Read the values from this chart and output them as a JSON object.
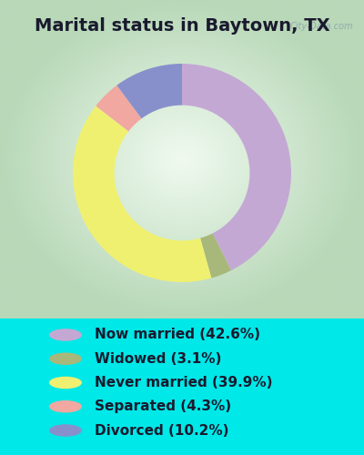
{
  "title": "Marital status in Baytown, TX",
  "slices": [
    {
      "label": "Now married (42.6%)",
      "value": 42.6,
      "color": "#C4A8D4"
    },
    {
      "label": "Widowed (3.1%)",
      "value": 3.1,
      "color": "#A8B87A"
    },
    {
      "label": "Never married (39.9%)",
      "value": 39.9,
      "color": "#F0F070"
    },
    {
      "label": "Separated (4.3%)",
      "value": 4.3,
      "color": "#F0A8A0"
    },
    {
      "label": "Divorced (10.2%)",
      "value": 10.2,
      "color": "#8890CC"
    }
  ],
  "bg_color": "#00E8E8",
  "panel_edge_color": "#B8D8B8",
  "panel_center_color": "#F0FAF0",
  "watermark": "City-Data.com",
  "title_fontsize": 14,
  "legend_fontsize": 11,
  "start_angle": 90,
  "donut_width": 0.38
}
